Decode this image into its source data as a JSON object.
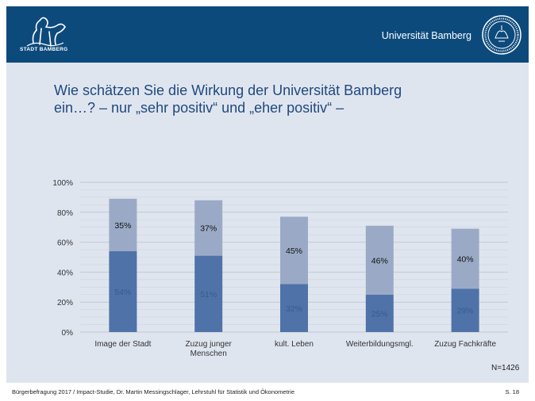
{
  "header": {
    "stadt_label": "STADT BAMBERG",
    "university_name": "Universität Bamberg"
  },
  "title_lines": [
    "Wie schätzen Sie die Wirkung der Universität Bamberg",
    "ein…? – nur „sehr positiv“ und „eher positiv“ –"
  ],
  "n_label": "N=1426",
  "footer": {
    "text": "Bürgerbefragung 2017 / Impact-Studie, Dr. Martin Messingschlager, Lehrstuhl für Statistik und Ökonometrie",
    "page": "S. 18"
  },
  "colors": {
    "header_bg": "#0d4a7c",
    "content_bg": "#dfe5ef",
    "series_sehr": "#4f73a8",
    "series_eher": "#9aaac6",
    "title": "#1f497d"
  },
  "chart_data": {
    "type": "bar",
    "stacked": true,
    "categories": [
      [
        "Image der Stadt"
      ],
      [
        "Zuzug junger",
        "Menschen"
      ],
      [
        "kult. Leben"
      ],
      [
        "Weiterbildungsmgl."
      ],
      [
        "Zuzug Fachkräfte"
      ]
    ],
    "series": [
      {
        "values": [
          54,
          51,
          32,
          25,
          29
        ],
        "labels": [
          "54%",
          "51%",
          "32%",
          "25%",
          "29%"
        ]
      },
      {
        "values": [
          35,
          37,
          45,
          46,
          40
        ],
        "labels": [
          "35%",
          "37%",
          "45%",
          "46%",
          "40%"
        ]
      }
    ],
    "yticks": [
      "0%",
      "20%",
      "40%",
      "60%",
      "80%",
      "100%"
    ],
    "ylim": [
      0,
      100
    ],
    "grid": true
  }
}
